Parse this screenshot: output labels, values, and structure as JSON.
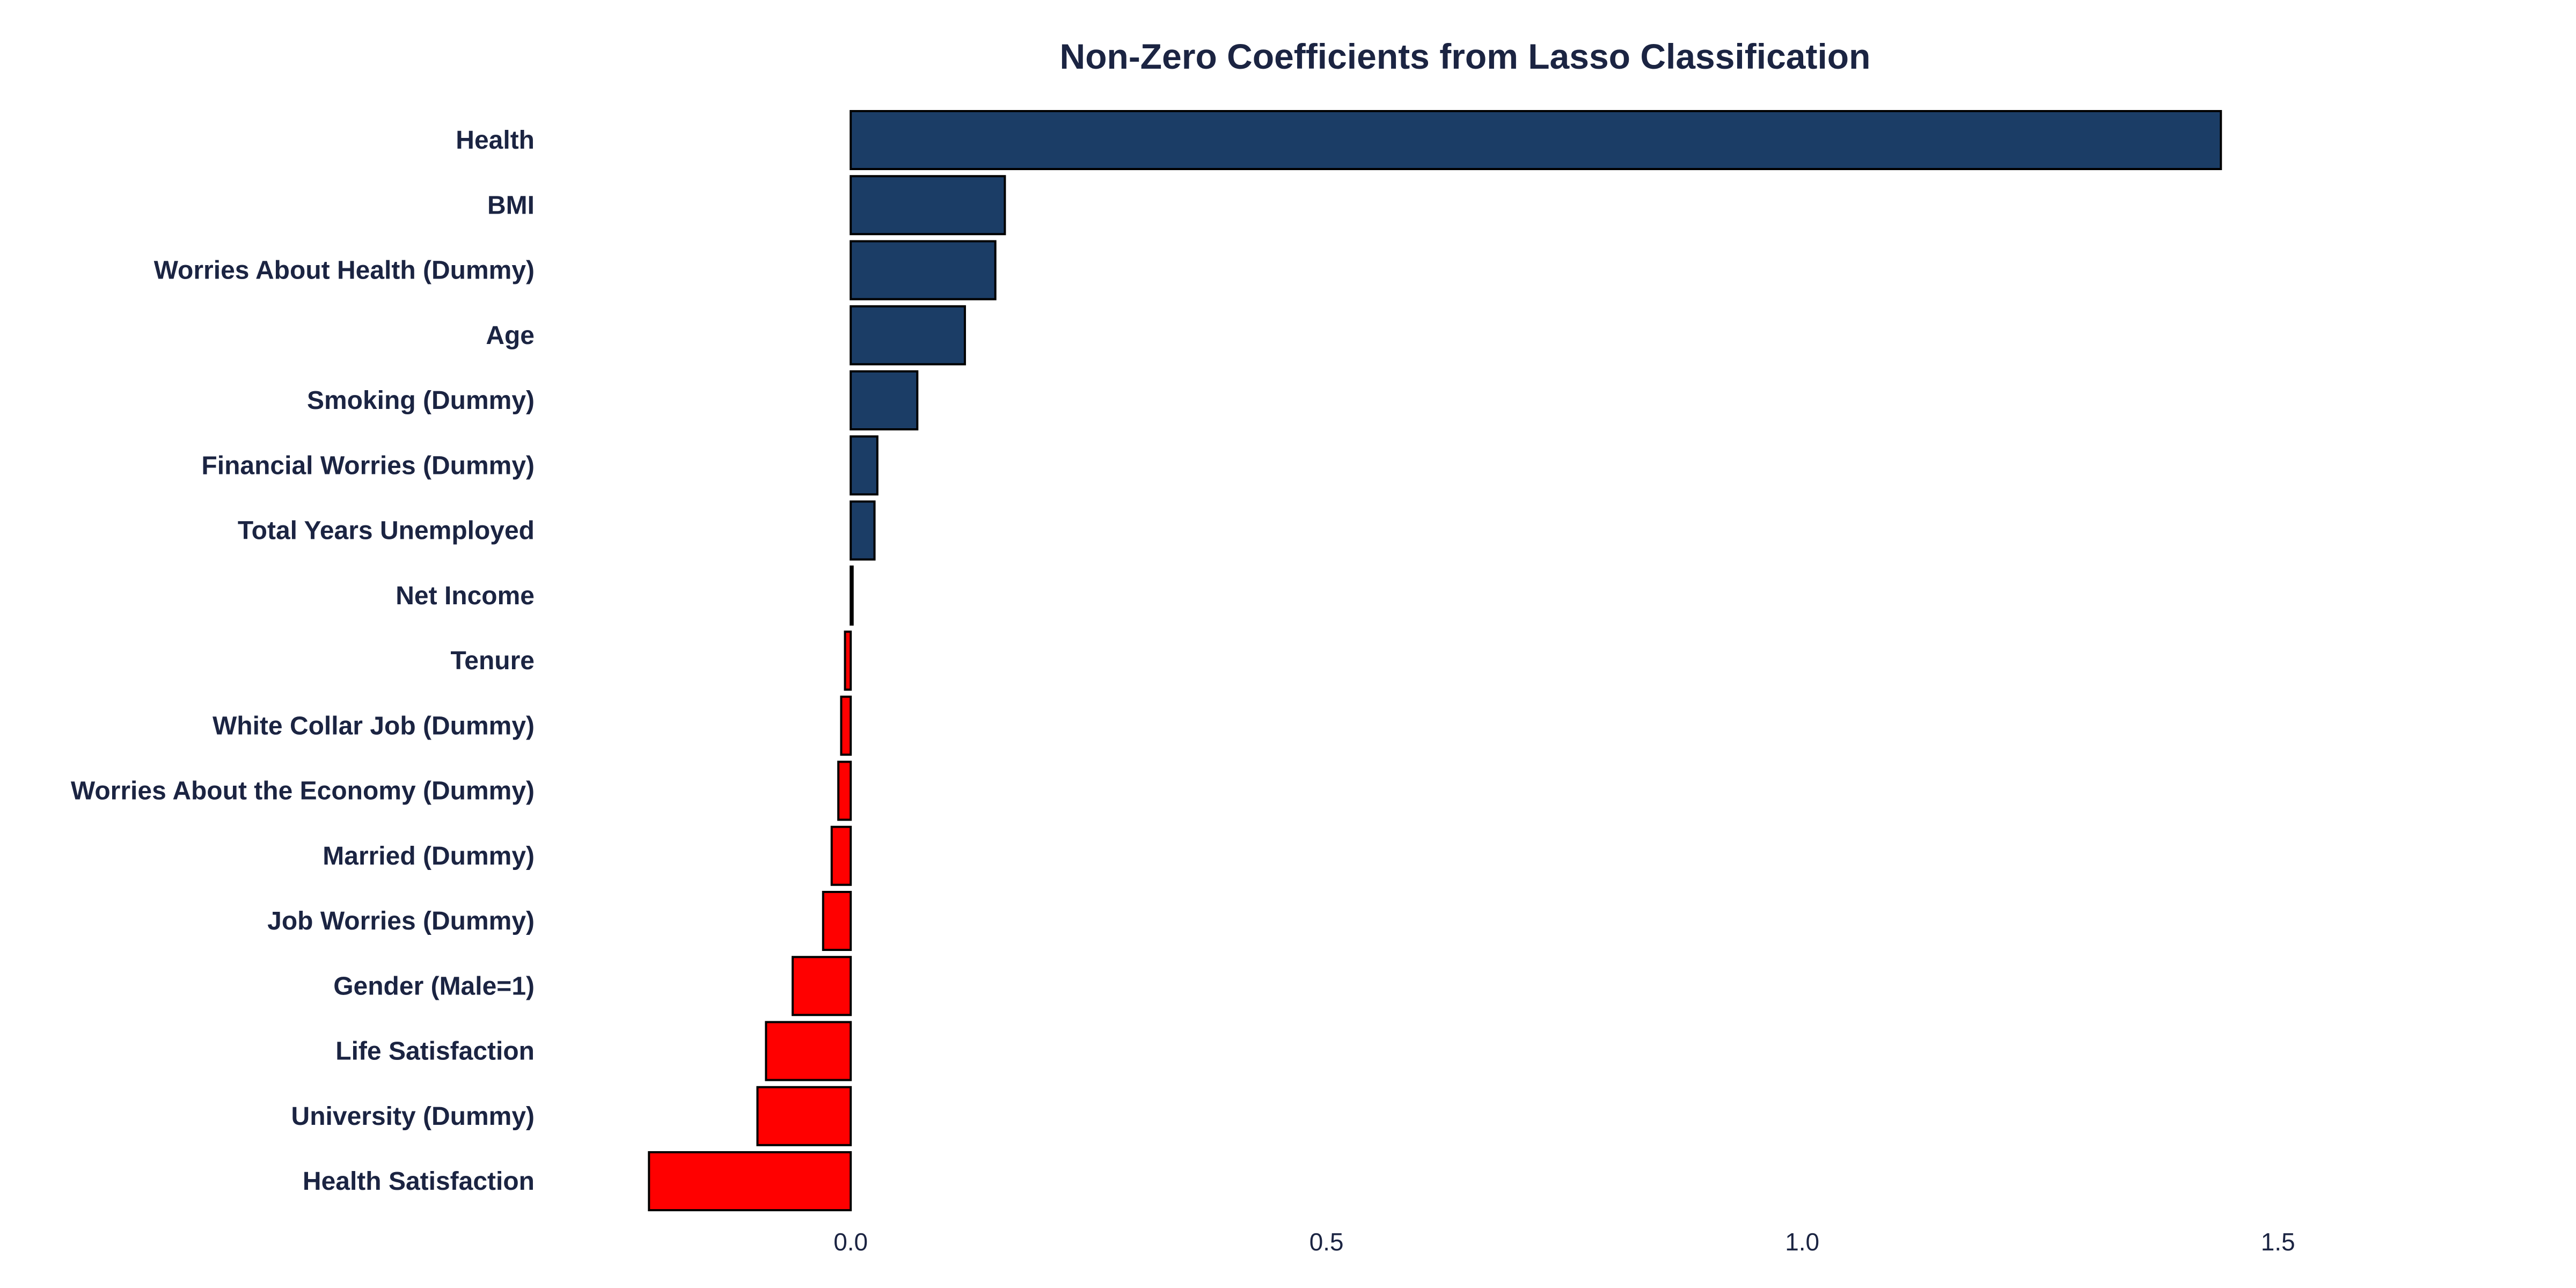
{
  "chart_data": {
    "type": "bar",
    "orientation": "horizontal",
    "title": "Non-Zero Coefficients from Lasso Classification",
    "xlabel": "",
    "ylabel": "",
    "categories": [
      "Health",
      "BMI",
      "Worries About Health (Dummy)",
      "Age",
      "Smoking (Dummy)",
      "Financial Worries (Dummy)",
      "Total Years Unemployed",
      "Net Income",
      "Tenure",
      "White Collar Job (Dummy)",
      "Worries About the Economy (Dummy)",
      "Married (Dummy)",
      "Job Worries (Dummy)",
      "Gender (Male=1)",
      "Life Satisfaction",
      "University (Dummy)",
      "Health Satisfaction"
    ],
    "values": [
      1.44,
      0.162,
      0.152,
      0.12,
      0.07,
      0.028,
      0.025,
      0.002,
      -0.006,
      -0.01,
      -0.013,
      -0.02,
      -0.029,
      -0.061,
      -0.089,
      -0.098,
      -0.212
    ],
    "xlim": [
      -0.29,
      1.71
    ],
    "xticks": [
      0.0,
      0.5,
      1.0,
      1.5
    ],
    "xtick_labels": [
      "0.0",
      "0.5",
      "1.0",
      "1.5"
    ],
    "grid": false,
    "legend": "none",
    "colors": {
      "positive": "#1b3d66",
      "negative": "#ff0000",
      "bar_outline": "#000000",
      "text": "#1b2442"
    }
  }
}
